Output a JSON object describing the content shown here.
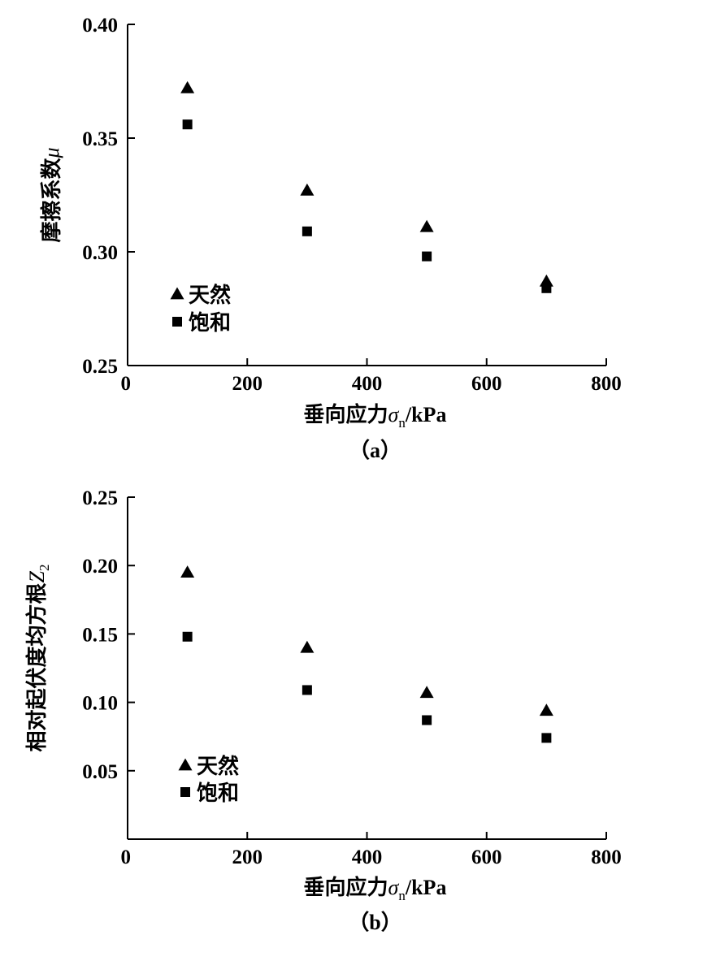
{
  "chart_data": [
    {
      "type": "scatter",
      "caption": "（a）",
      "xlabel": "垂向应力σn/kPa",
      "xlabel_main": "垂向应力",
      "xlabel_symbol": "σ",
      "xlabel_sub": "n",
      "xlabel_unit": "/kPa",
      "ylabel": "摩擦系数μ",
      "ylabel_main": "摩擦系数",
      "ylabel_symbol": "μ",
      "xlim": [
        0,
        800
      ],
      "ylim": [
        0.25,
        0.4
      ],
      "x_ticks": [
        0,
        200,
        400,
        600,
        800
      ],
      "x_tick_labels": [
        "0",
        "200",
        "400",
        "600",
        "800"
      ],
      "y_ticks": [
        0.25,
        0.3,
        0.35,
        0.4
      ],
      "y_tick_labels": [
        "0.25",
        "0.30",
        "0.35",
        "0.40"
      ],
      "grid": false,
      "legend_position": "lower-left",
      "series": [
        {
          "name": "天然",
          "marker": "triangle",
          "x": [
            100,
            300,
            500,
            700
          ],
          "y": [
            0.372,
            0.327,
            0.311,
            0.287
          ]
        },
        {
          "name": "饱和",
          "marker": "square",
          "x": [
            100,
            300,
            500,
            700
          ],
          "y": [
            0.356,
            0.309,
            0.298,
            0.284
          ]
        }
      ]
    },
    {
      "type": "scatter",
      "caption": "（b）",
      "xlabel": "垂向应力σn/kPa",
      "xlabel_main": "垂向应力",
      "xlabel_symbol": "σ",
      "xlabel_sub": "n",
      "xlabel_unit": "/kPa",
      "ylabel": "相对起伏度均方根Z2",
      "ylabel_main": "相对起伏度均方根",
      "ylabel_symbol": "Z",
      "ylabel_sub": "2",
      "xlim": [
        0,
        800
      ],
      "ylim": [
        0.0,
        0.25
      ],
      "x_ticks": [
        0,
        200,
        400,
        600,
        800
      ],
      "x_tick_labels": [
        "0",
        "200",
        "400",
        "600",
        "800"
      ],
      "y_ticks": [
        0.05,
        0.1,
        0.15,
        0.2,
        0.25
      ],
      "y_tick_labels": [
        "0.05",
        "0.10",
        "0.15",
        "0.20",
        "0.25"
      ],
      "grid": false,
      "legend_position": "lower-left",
      "series": [
        {
          "name": "天然",
          "marker": "triangle",
          "x": [
            100,
            300,
            500,
            700
          ],
          "y": [
            0.195,
            0.14,
            0.107,
            0.094
          ]
        },
        {
          "name": "饱和",
          "marker": "square",
          "x": [
            100,
            300,
            500,
            700
          ],
          "y": [
            0.148,
            0.109,
            0.087,
            0.074
          ]
        }
      ]
    }
  ]
}
